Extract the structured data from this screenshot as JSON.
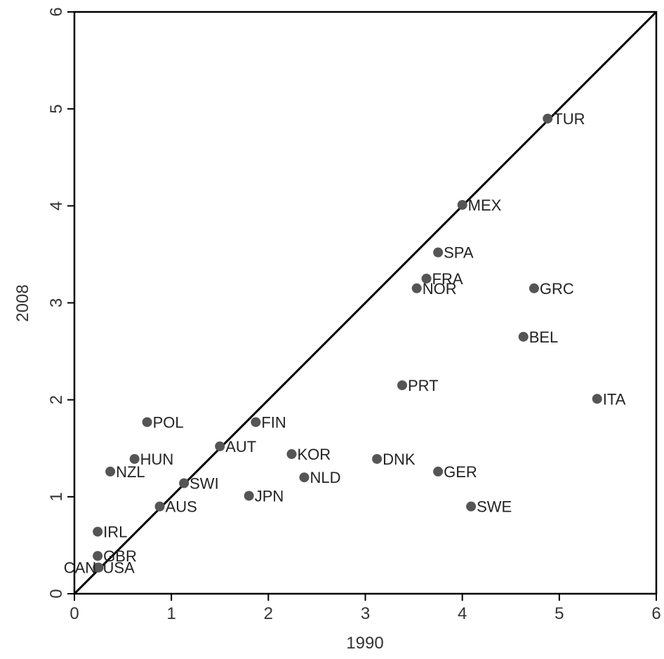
{
  "chart_data": {
    "type": "scatter",
    "title": "",
    "xlabel": "1990",
    "ylabel": "2008",
    "xlim": [
      0,
      6
    ],
    "ylim": [
      0,
      6
    ],
    "x_ticks": [
      "0",
      "1",
      "2",
      "3",
      "4",
      "5",
      "6"
    ],
    "y_ticks": [
      "0",
      "1",
      "2",
      "3",
      "4",
      "5",
      "6"
    ],
    "grid": false,
    "reference_line": {
      "from": [
        0,
        0
      ],
      "to": [
        6,
        6
      ]
    },
    "point_color": "#555555",
    "line_color": "#000000",
    "points": [
      {
        "label": "TUR",
        "x": 4.88,
        "y": 4.9
      },
      {
        "label": "MEX",
        "x": 4.0,
        "y": 4.01
      },
      {
        "label": "SPA",
        "x": 3.75,
        "y": 3.52
      },
      {
        "label": "FRA",
        "x": 3.63,
        "y": 3.25
      },
      {
        "label": "NOR",
        "x": 3.53,
        "y": 3.15
      },
      {
        "label": "GRC",
        "x": 4.74,
        "y": 3.15
      },
      {
        "label": "BEL",
        "x": 4.63,
        "y": 2.65
      },
      {
        "label": "PRT",
        "x": 3.38,
        "y": 2.15
      },
      {
        "label": "ITA",
        "x": 5.39,
        "y": 2.01
      },
      {
        "label": "POL",
        "x": 0.75,
        "y": 1.77
      },
      {
        "label": "FIN",
        "x": 1.87,
        "y": 1.77
      },
      {
        "label": "AUT",
        "x": 1.5,
        "y": 1.52
      },
      {
        "label": "KOR",
        "x": 2.24,
        "y": 1.44
      },
      {
        "label": "DNK",
        "x": 3.12,
        "y": 1.39
      },
      {
        "label": "HUN",
        "x": 0.62,
        "y": 1.39
      },
      {
        "label": "NZL",
        "x": 0.37,
        "y": 1.26
      },
      {
        "label": "GER",
        "x": 3.75,
        "y": 1.26
      },
      {
        "label": "NLD",
        "x": 2.37,
        "y": 1.2
      },
      {
        "label": "SWI",
        "x": 1.13,
        "y": 1.14
      },
      {
        "label": "JPN",
        "x": 1.8,
        "y": 1.01
      },
      {
        "label": "AUS",
        "x": 0.88,
        "y": 0.9
      },
      {
        "label": "SWE",
        "x": 4.09,
        "y": 0.9
      },
      {
        "label": "IRL",
        "x": 0.24,
        "y": 0.64
      },
      {
        "label": "GBR",
        "x": 0.24,
        "y": 0.39
      },
      {
        "label": "CAN",
        "x": 0.24,
        "y": 0.27
      },
      {
        "label": "USA",
        "x": 0.25,
        "y": 0.27
      }
    ]
  }
}
